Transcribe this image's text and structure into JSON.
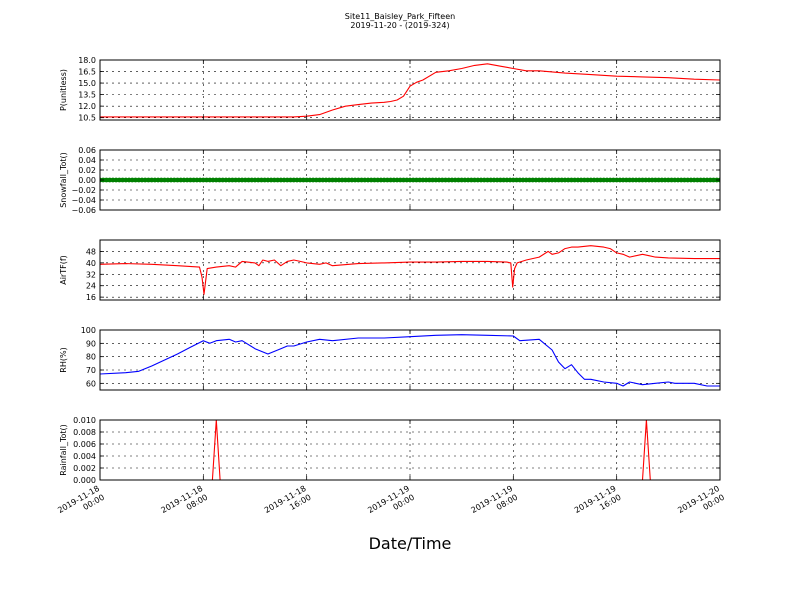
{
  "figure": {
    "title": "Site11_Baisley_Park_Fifteen",
    "subtitle": "2019-11-20 - (2019-324)",
    "xlabel": "Date/Time"
  },
  "chart_data": [
    {
      "type": "line",
      "ylabel": "P(unitless)",
      "color": "#ff0000",
      "x_ticks": [
        {
          "x": 0,
          "label": [
            "2019-11-18",
            "00:00"
          ]
        },
        {
          "x": 8,
          "label": [
            "2019-11-18",
            "08:00"
          ]
        },
        {
          "x": 16,
          "label": [
            "2019-11-18",
            "16:00"
          ]
        },
        {
          "x": 24,
          "label": [
            "2019-11-19",
            "00:00"
          ]
        },
        {
          "x": 32,
          "label": [
            "2019-11-19",
            "08:00"
          ]
        },
        {
          "x": 40,
          "label": [
            "2019-11-19",
            "16:00"
          ]
        },
        {
          "x": 48,
          "label": [
            "2019-11-20",
            "00:00"
          ]
        }
      ],
      "xlim": [
        0,
        48
      ],
      "ylim": [
        10.2,
        18.0
      ],
      "yticks": [
        10.5,
        12.0,
        13.5,
        15.0,
        16.5,
        18.0
      ],
      "ytick_labels": [
        "10.5",
        "12.0",
        "13.5",
        "15.0",
        "16.5",
        "18.0"
      ],
      "grid": true,
      "x": [
        0,
        4,
        8,
        12,
        14,
        15,
        16,
        17,
        18,
        19,
        20,
        21,
        22,
        22.5,
        23,
        23.5,
        24,
        24.5,
        25,
        26,
        27,
        28,
        29,
        30,
        31,
        32,
        33,
        34,
        36,
        38,
        40,
        42,
        44,
        46,
        48
      ],
      "y": [
        10.6,
        10.6,
        10.6,
        10.6,
        10.6,
        10.6,
        10.7,
        10.9,
        11.5,
        12.0,
        12.2,
        12.4,
        12.5,
        12.6,
        12.8,
        13.3,
        14.6,
        15.1,
        15.4,
        16.4,
        16.6,
        16.9,
        17.3,
        17.5,
        17.2,
        16.9,
        16.6,
        16.6,
        16.3,
        16.1,
        15.9,
        15.8,
        15.7,
        15.5,
        15.4
      ]
    },
    {
      "type": "scatter",
      "ylabel": "Snowfall_Tot()",
      "color": "#008000",
      "xlim": [
        0,
        48
      ],
      "ylim": [
        -0.06,
        0.06
      ],
      "yticks": [
        -0.06,
        -0.04,
        -0.02,
        0.0,
        0.02,
        0.04,
        0.06
      ],
      "ytick_labels": [
        "−0.06",
        "−0.04",
        "−0.02",
        "0.00",
        "0.02",
        "0.04",
        "0.06"
      ],
      "grid": true,
      "y_constant": 0.0,
      "x_start": 0,
      "x_end": 48,
      "x_step": 0.25
    },
    {
      "type": "line",
      "ylabel": "AirTF(f)",
      "color": "#ff0000",
      "xlim": [
        0,
        48
      ],
      "ylim": [
        14,
        56
      ],
      "yticks": [
        16,
        24,
        32,
        40,
        48
      ],
      "ytick_labels": [
        "16",
        "24",
        "32",
        "40",
        "48"
      ],
      "grid": true,
      "x": [
        0,
        2,
        4,
        6,
        7.7,
        7.9,
        8.05,
        8.3,
        9,
        10,
        10.5,
        11,
        12,
        12.3,
        12.6,
        13,
        13.5,
        14,
        14.5,
        15,
        15.5,
        16,
        17,
        17.5,
        18,
        20,
        22,
        24,
        26,
        28,
        30,
        31.5,
        31.8,
        31.95,
        32.1,
        32.3,
        33,
        34,
        34.7,
        35,
        35.5,
        36,
        36.5,
        37,
        38,
        39,
        39.5,
        40,
        40.5,
        41,
        42,
        42.5,
        43,
        44,
        46,
        48
      ],
      "y": [
        39,
        39.5,
        39,
        38,
        37,
        30,
        18,
        36,
        37,
        38,
        37,
        41,
        40,
        38,
        42,
        41,
        42,
        38,
        41,
        42,
        41,
        40,
        39,
        40,
        38,
        39.5,
        40,
        40.5,
        40.5,
        41,
        41,
        40.5,
        40,
        23,
        36,
        40,
        42,
        44,
        48,
        46,
        47,
        50,
        51,
        51,
        52,
        51,
        50,
        47,
        46,
        44,
        46,
        45,
        44,
        43.5,
        43,
        43
      ]
    },
    {
      "type": "line",
      "ylabel": "RH(%)",
      "color": "#0000ff",
      "xlim": [
        0,
        48
      ],
      "ylim": [
        55,
        100
      ],
      "yticks": [
        60,
        70,
        80,
        90,
        100
      ],
      "ytick_labels": [
        "60",
        "70",
        "80",
        "90",
        "100"
      ],
      "grid": true,
      "x": [
        0,
        2,
        3,
        4,
        6,
        7,
        8,
        8.5,
        9,
        10,
        10.5,
        11,
        12,
        13,
        14,
        14.5,
        15,
        16,
        17,
        18,
        20,
        22,
        24,
        26,
        28,
        30,
        32,
        32.5,
        34,
        35,
        35.5,
        36,
        36.5,
        37,
        37.5,
        38,
        39,
        40,
        40.5,
        41,
        42,
        43,
        44,
        44.5,
        45,
        46,
        47,
        48
      ],
      "y": [
        67,
        68,
        69,
        73,
        82,
        87,
        92,
        90,
        92,
        93,
        91,
        92,
        86,
        82,
        86,
        88,
        88,
        91,
        93,
        92,
        94,
        94,
        95,
        96,
        96.5,
        96,
        95.5,
        92,
        93,
        85,
        76,
        71,
        74,
        68,
        63,
        63,
        61,
        60,
        58,
        61,
        59,
        60,
        61,
        60,
        60,
        60,
        58,
        58
      ]
    },
    {
      "type": "line",
      "ylabel": "Rainfall_Tot()",
      "color": "#ff0000",
      "xlim": [
        0,
        48
      ],
      "ylim": [
        0.0,
        0.01
      ],
      "yticks": [
        0.0,
        0.002,
        0.004,
        0.006,
        0.008,
        0.01
      ],
      "ytick_labels": [
        "0.000",
        "0.002",
        "0.004",
        "0.006",
        "0.008",
        "0.010"
      ],
      "grid": true,
      "x": [
        0,
        8.7,
        9.0,
        9.3,
        42.0,
        42.3,
        42.6,
        48
      ],
      "y": [
        0,
        0,
        0.01,
        0,
        0,
        0.01,
        0,
        0
      ]
    }
  ]
}
